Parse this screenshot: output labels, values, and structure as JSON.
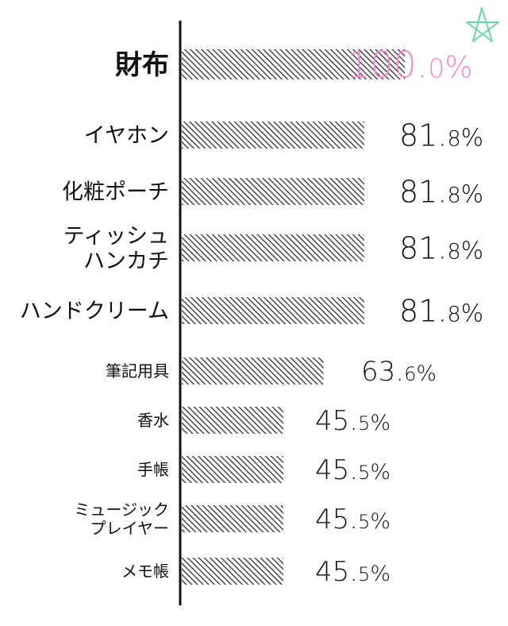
{
  "chart_data": {
    "type": "bar",
    "orientation": "horizontal",
    "categories": [
      [
        "財布"
      ],
      [
        "イヤホン"
      ],
      [
        "化粧ポーチ"
      ],
      [
        "ティッシュ",
        "ハンカチ"
      ],
      [
        "ハンドクリーム"
      ],
      [
        "筆記用具"
      ],
      [
        "香水"
      ],
      [
        "手帳"
      ],
      [
        "ミュージック",
        "プレイヤー"
      ],
      [
        "メモ帳"
      ]
    ],
    "values": [
      100.0,
      81.8,
      81.8,
      81.8,
      81.8,
      63.6,
      45.5,
      45.5,
      45.5,
      45.5
    ],
    "value_labels": [
      {
        "main": "100.",
        "frac": "0",
        "unit": "%"
      },
      {
        "main": "81.",
        "frac": "8",
        "unit": "%"
      },
      {
        "main": "81.",
        "frac": "8",
        "unit": "%"
      },
      {
        "main": "81.",
        "frac": "8",
        "unit": "%"
      },
      {
        "main": "81.",
        "frac": "8",
        "unit": "%"
      },
      {
        "main": "63.",
        "frac": "6",
        "unit": "%"
      },
      {
        "main": "45.",
        "frac": "5",
        "unit": "%"
      },
      {
        "main": "45.",
        "frac": "5",
        "unit": "%"
      },
      {
        "main": "45.",
        "frac": "5",
        "unit": "%"
      },
      {
        "main": "45.",
        "frac": "5",
        "unit": "%"
      }
    ],
    "xlim": [
      0,
      100
    ],
    "grid": false,
    "legend": "none",
    "bar_fill": "diagonal-hatch",
    "colors": {
      "bar_hatch": "#222222",
      "axis": "#111111",
      "text": "#111111",
      "highlight_label": "#f08ccf",
      "star": "#6fd3a6"
    },
    "highlight_index": 0,
    "decoration_icon": "star-icon"
  }
}
